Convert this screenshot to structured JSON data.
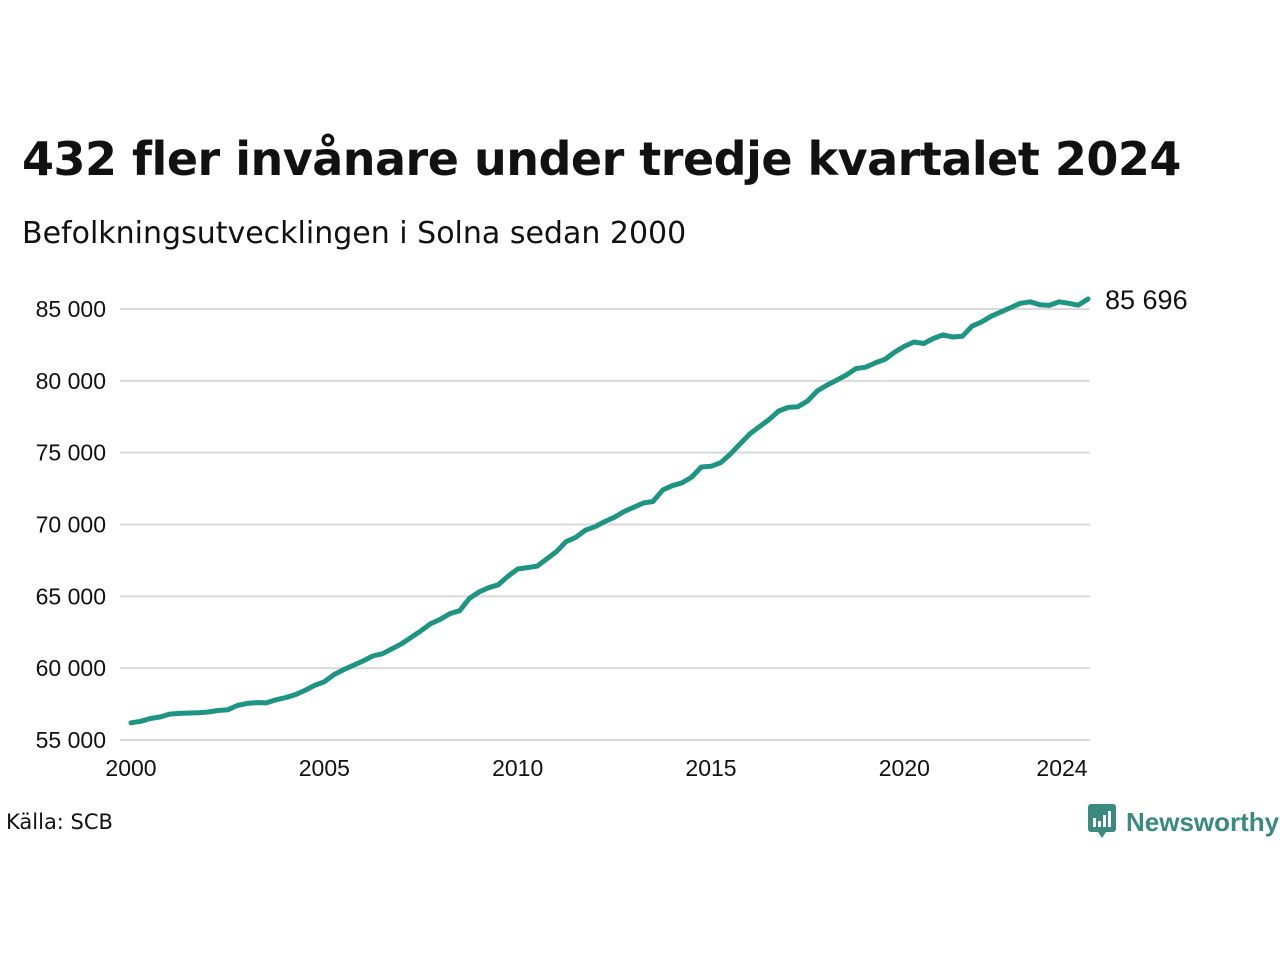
{
  "header": {
    "title": "432 fler invånare under tredje kvartalet 2024",
    "subtitle": "Befolkningsutvecklingen i Solna sedan 2000"
  },
  "footer": {
    "source": "Källa: SCB",
    "brand": "Newsworthy",
    "brand_icon": "newsworthy-logo-icon"
  },
  "colors": {
    "line": "#1e9582",
    "grid": "#d9d9d9",
    "brand": "#3a8a80"
  },
  "chart_data": {
    "type": "line",
    "title": "432 fler invånare under tredje kvartalet 2024",
    "subtitle": "Befolkningsutvecklingen i Solna sedan 2000",
    "xlabel": "",
    "ylabel": "",
    "xlim": [
      2000.0,
      2024.75
    ],
    "ylim": [
      55000,
      85700
    ],
    "grid": true,
    "x_ticks": [
      2000,
      2005,
      2010,
      2015,
      2020,
      2024
    ],
    "y_ticks": [
      55000,
      60000,
      65000,
      70000,
      75000,
      80000,
      85000
    ],
    "y_tick_labels": [
      "55 000",
      "60 000",
      "65 000",
      "70 000",
      "75 000",
      "80 000",
      "85 000"
    ],
    "last_value_label": "85 696",
    "series": [
      {
        "frequency": "quarterly",
        "x": [
          2000.0,
          2000.25,
          2000.5,
          2000.75,
          2001.0,
          2001.25,
          2001.5,
          2001.75,
          2002.0,
          2002.25,
          2002.5,
          2002.75,
          2003.0,
          2003.25,
          2003.5,
          2003.75,
          2004.0,
          2004.25,
          2004.5,
          2004.75,
          2005.0,
          2005.25,
          2005.5,
          2005.75,
          2006.0,
          2006.25,
          2006.5,
          2006.75,
          2007.0,
          2007.25,
          2007.5,
          2007.75,
          2008.0,
          2008.25,
          2008.5,
          2008.75,
          2009.0,
          2009.25,
          2009.5,
          2009.75,
          2010.0,
          2010.25,
          2010.5,
          2010.75,
          2011.0,
          2011.25,
          2011.5,
          2011.75,
          2012.0,
          2012.25,
          2012.5,
          2012.75,
          2013.0,
          2013.25,
          2013.5,
          2013.75,
          2014.0,
          2014.25,
          2014.5,
          2014.75,
          2015.0,
          2015.25,
          2015.5,
          2015.75,
          2016.0,
          2016.25,
          2016.5,
          2016.75,
          2017.0,
          2017.25,
          2017.5,
          2017.75,
          2018.0,
          2018.25,
          2018.5,
          2018.75,
          2019.0,
          2019.25,
          2019.5,
          2019.75,
          2020.0,
          2020.25,
          2020.5,
          2020.75,
          2021.0,
          2021.25,
          2021.5,
          2021.75,
          2022.0,
          2022.25,
          2022.5,
          2022.75,
          2023.0,
          2023.25,
          2023.5,
          2023.75,
          2024.0,
          2024.25,
          2024.5,
          2024.75
        ],
        "values": [
          56200,
          56300,
          56500,
          56600,
          56800,
          56850,
          56880,
          56900,
          56950,
          57050,
          57100,
          57400,
          57550,
          57600,
          57580,
          57800,
          57950,
          58150,
          58450,
          58800,
          59050,
          59550,
          59900,
          60200,
          60500,
          60850,
          61000,
          61350,
          61700,
          62150,
          62600,
          63100,
          63400,
          63800,
          64000,
          64850,
          65300,
          65600,
          65800,
          66400,
          66900,
          67000,
          67100,
          67600,
          68100,
          68800,
          69100,
          69600,
          69850,
          70200,
          70500,
          70900,
          71200,
          71500,
          71600,
          72400,
          72700,
          72900,
          73300,
          74000,
          74050,
          74300,
          74900,
          75600,
          76300,
          76800,
          77300,
          77900,
          78150,
          78200,
          78600,
          79300,
          79700,
          80050,
          80400,
          80850,
          80950,
          81250,
          81500,
          82000,
          82400,
          82700,
          82600,
          82950,
          83200,
          83050,
          83100,
          83800,
          84100,
          84500,
          84800,
          85100,
          85400,
          85500,
          85300,
          85250,
          85500,
          85400,
          85264,
          85696
        ]
      }
    ]
  }
}
